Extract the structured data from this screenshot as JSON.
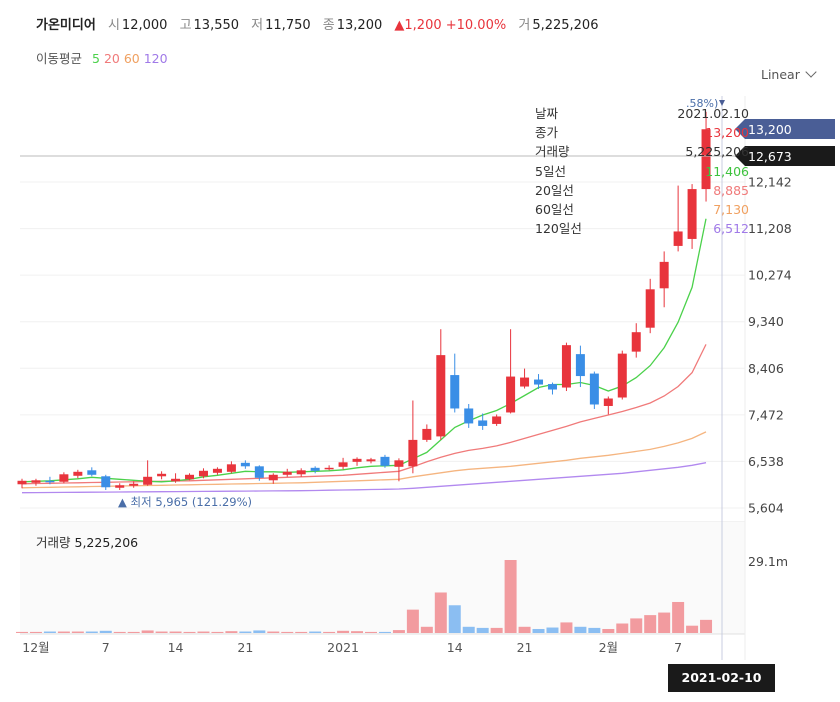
{
  "header": {
    "name": "가온미디어",
    "open_label": "시",
    "open": "12,000",
    "high_label": "고",
    "high": "13,550",
    "low_label": "저",
    "low": "11,750",
    "close_label": "종",
    "close": "13,200",
    "change": "▲1,200 +10.00%",
    "volume_label": "거",
    "volume": "5,225,206"
  },
  "ma_legend": {
    "title": "이동평균",
    "ma5": "5",
    "ma20": "20",
    "ma60": "60",
    "ma120": "120"
  },
  "scale_selector": "Linear",
  "tooltip": {
    "date_label": "날짜",
    "date": "2021.02.10",
    "close_label": "종가",
    "close": "13,200",
    "volume_label": "거래량",
    "volume": "5,225,206",
    "ma5_label": "5일선",
    "ma5": "11,406",
    "ma20_label": "20일선",
    "ma20": "8,885",
    "ma60_label": "60일선",
    "ma60": "7,130",
    "ma120_label": "120일선",
    "ma120": "6,512"
  },
  "price_tags": {
    "last": "13,200",
    "crosshair": "12,673"
  },
  "high_marker": ".58%)",
  "low_marker": "▲ 최저 5,965 (121.29%)",
  "volume_panel": {
    "label": "거래량",
    "value": "5,225,206",
    "axis_max": "29.1m"
  },
  "crosshair_date": "2021-02-10",
  "colors": {
    "up": "#e8343c",
    "down": "#3a8ee6",
    "ma5": "#4bd14b",
    "ma20": "#f07a7a",
    "ma60": "#f5b580",
    "ma120": "#b289ef",
    "tag_last": "#4a5e96"
  },
  "chart_data": {
    "type": "candlestick",
    "y_axis_ticks": [
      "12,142",
      "11,208",
      "10,274",
      "9,340",
      "8,406",
      "7,472",
      "6,538",
      "5,604"
    ],
    "y_axis_values": [
      12142,
      11208,
      10274,
      9340,
      8406,
      7472,
      6538,
      5604
    ],
    "x_axis_labels": [
      "12월",
      "7",
      "14",
      "21",
      "2021",
      "14",
      "21",
      "2월",
      "7"
    ],
    "volume_axis_ticks": [
      "29.1m"
    ],
    "candles": [
      {
        "o": 6080,
        "h": 6190,
        "l": 6000,
        "c": 6150
      },
      {
        "o": 6110,
        "h": 6190,
        "l": 6050,
        "c": 6160
      },
      {
        "o": 6150,
        "h": 6230,
        "l": 6080,
        "c": 6120
      },
      {
        "o": 6130,
        "h": 6320,
        "l": 6100,
        "c": 6280
      },
      {
        "o": 6250,
        "h": 6370,
        "l": 6200,
        "c": 6330
      },
      {
        "o": 6360,
        "h": 6420,
        "l": 6240,
        "c": 6270
      },
      {
        "o": 6240,
        "h": 6270,
        "l": 5965,
        "c": 6020
      },
      {
        "o": 6010,
        "h": 6100,
        "l": 5965,
        "c": 6060
      },
      {
        "o": 6050,
        "h": 6140,
        "l": 6010,
        "c": 6090
      },
      {
        "o": 6070,
        "h": 6560,
        "l": 6050,
        "c": 6230
      },
      {
        "o": 6240,
        "h": 6340,
        "l": 6180,
        "c": 6290
      },
      {
        "o": 6140,
        "h": 6300,
        "l": 6110,
        "c": 6190
      },
      {
        "o": 6180,
        "h": 6300,
        "l": 6160,
        "c": 6270
      },
      {
        "o": 6240,
        "h": 6400,
        "l": 6200,
        "c": 6350
      },
      {
        "o": 6310,
        "h": 6420,
        "l": 6270,
        "c": 6390
      },
      {
        "o": 6330,
        "h": 6540,
        "l": 6300,
        "c": 6480
      },
      {
        "o": 6510,
        "h": 6560,
        "l": 6390,
        "c": 6440
      },
      {
        "o": 6440,
        "h": 6460,
        "l": 6150,
        "c": 6210
      },
      {
        "o": 6160,
        "h": 6300,
        "l": 6090,
        "c": 6270
      },
      {
        "o": 6270,
        "h": 6390,
        "l": 6230,
        "c": 6330
      },
      {
        "o": 6280,
        "h": 6400,
        "l": 6230,
        "c": 6360
      },
      {
        "o": 6410,
        "h": 6440,
        "l": 6300,
        "c": 6350
      },
      {
        "o": 6390,
        "h": 6460,
        "l": 6360,
        "c": 6410
      },
      {
        "o": 6430,
        "h": 6610,
        "l": 6380,
        "c": 6520
      },
      {
        "o": 6530,
        "h": 6620,
        "l": 6450,
        "c": 6590
      },
      {
        "o": 6540,
        "h": 6610,
        "l": 6500,
        "c": 6580
      },
      {
        "o": 6630,
        "h": 6670,
        "l": 6410,
        "c": 6450
      },
      {
        "o": 6430,
        "h": 6600,
        "l": 6140,
        "c": 6560
      },
      {
        "o": 6440,
        "h": 7760,
        "l": 6300,
        "c": 6970
      },
      {
        "o": 6970,
        "h": 7280,
        "l": 6930,
        "c": 7190
      },
      {
        "o": 7040,
        "h": 9190,
        "l": 6970,
        "c": 8670
      },
      {
        "o": 8270,
        "h": 8700,
        "l": 7520,
        "c": 7600
      },
      {
        "o": 7600,
        "h": 7690,
        "l": 7210,
        "c": 7300
      },
      {
        "o": 7360,
        "h": 7500,
        "l": 7170,
        "c": 7250
      },
      {
        "o": 7290,
        "h": 7480,
        "l": 7250,
        "c": 7440
      },
      {
        "o": 7520,
        "h": 9190,
        "l": 7500,
        "c": 8240
      },
      {
        "o": 8040,
        "h": 8400,
        "l": 8000,
        "c": 8220
      },
      {
        "o": 8180,
        "h": 8290,
        "l": 7990,
        "c": 8080
      },
      {
        "o": 8090,
        "h": 8120,
        "l": 7880,
        "c": 7980
      },
      {
        "o": 8020,
        "h": 8920,
        "l": 7950,
        "c": 8870
      },
      {
        "o": 8690,
        "h": 8860,
        "l": 8030,
        "c": 8250
      },
      {
        "o": 8300,
        "h": 8340,
        "l": 7590,
        "c": 7680
      },
      {
        "o": 7650,
        "h": 7840,
        "l": 7480,
        "c": 7800
      },
      {
        "o": 7820,
        "h": 8760,
        "l": 7780,
        "c": 8700
      },
      {
        "o": 8740,
        "h": 9310,
        "l": 8620,
        "c": 9130
      },
      {
        "o": 9220,
        "h": 10200,
        "l": 9110,
        "c": 9990
      },
      {
        "o": 10010,
        "h": 10750,
        "l": 9630,
        "c": 10540
      },
      {
        "o": 10860,
        "h": 12070,
        "l": 10750,
        "c": 11150
      },
      {
        "o": 11000,
        "h": 12100,
        "l": 10800,
        "c": 12000
      },
      {
        "o": 12000,
        "h": 13550,
        "l": 11750,
        "c": 13200
      }
    ],
    "ma5": [
      6130,
      6140,
      6150,
      6170,
      6190,
      6220,
      6200,
      6180,
      6160,
      6140,
      6130,
      6150,
      6180,
      6230,
      6260,
      6300,
      6340,
      6330,
      6330,
      6320,
      6330,
      6340,
      6350,
      6370,
      6410,
      6440,
      6450,
      6460,
      6590,
      6720,
      6970,
      7220,
      7350,
      7470,
      7560,
      7700,
      7860,
      8020,
      8080,
      8080,
      8120,
      8060,
      7950,
      8050,
      8220,
      8460,
      8820,
      9330,
      10030,
      11406
    ],
    "ma20": [
      6090,
      6095,
      6100,
      6105,
      6110,
      6115,
      6120,
      6125,
      6130,
      6135,
      6140,
      6145,
      6150,
      6160,
      6170,
      6180,
      6190,
      6200,
      6210,
      6220,
      6230,
      6240,
      6250,
      6260,
      6280,
      6300,
      6320,
      6340,
      6430,
      6530,
      6620,
      6700,
      6760,
      6800,
      6850,
      6920,
      7000,
      7080,
      7160,
      7240,
      7330,
      7400,
      7470,
      7540,
      7620,
      7710,
      7850,
      8040,
      8320,
      8885
    ],
    "ma60": [
      6010,
      6015,
      6020,
      6025,
      6030,
      6035,
      6040,
      6045,
      6050,
      6055,
      6060,
      6065,
      6070,
      6075,
      6080,
      6085,
      6090,
      6095,
      6100,
      6105,
      6110,
      6120,
      6130,
      6140,
      6150,
      6160,
      6170,
      6180,
      6230,
      6270,
      6310,
      6350,
      6380,
      6400,
      6420,
      6440,
      6470,
      6500,
      6530,
      6560,
      6600,
      6630,
      6660,
      6700,
      6740,
      6780,
      6840,
      6910,
      7000,
      7130
    ],
    "ma120": [
      5910,
      5912,
      5914,
      5916,
      5918,
      5920,
      5922,
      5924,
      5926,
      5928,
      5930,
      5932,
      5934,
      5936,
      5938,
      5940,
      5942,
      5944,
      5946,
      5948,
      5950,
      5955,
      5960,
      5965,
      5970,
      5975,
      5980,
      5985,
      6000,
      6020,
      6040,
      6060,
      6080,
      6100,
      6120,
      6140,
      6160,
      6180,
      6200,
      6220,
      6240,
      6260,
      6280,
      6300,
      6330,
      6360,
      6390,
      6420,
      6460,
      6512
    ],
    "volume": [
      0.03,
      0.03,
      0.04,
      0.04,
      0.04,
      0.04,
      0.06,
      0.03,
      0.03,
      0.07,
      0.04,
      0.04,
      0.03,
      0.04,
      0.03,
      0.05,
      0.04,
      0.07,
      0.04,
      0.03,
      0.03,
      0.04,
      0.03,
      0.06,
      0.05,
      0.03,
      0.03,
      0.08,
      0.64,
      0.17,
      1.11,
      0.76,
      0.17,
      0.14,
      0.14,
      2.0,
      0.17,
      0.11,
      0.15,
      0.29,
      0.17,
      0.14,
      0.11,
      0.26,
      0.4,
      0.49,
      0.56,
      0.85,
      0.2,
      0.36
    ]
  }
}
